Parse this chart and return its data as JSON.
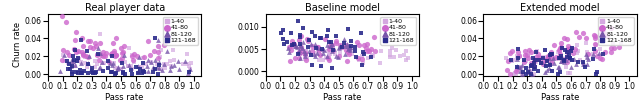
{
  "titles": [
    "Real player data",
    "Baseline model",
    "Extended model"
  ],
  "xlabel": "Pass rate",
  "ylabel": "Churn rate",
  "groups": [
    "1-40",
    "41-80",
    "81-120",
    "121-168"
  ],
  "colors": [
    "#d4a8e0",
    "#cc66cc",
    "#7755aa",
    "#2b2b8c"
  ],
  "markers": [
    "s",
    "o",
    "^",
    "s"
  ],
  "alphas": [
    0.7,
    0.8,
    0.8,
    0.9
  ],
  "marker_sizes": [
    10,
    14,
    12,
    10
  ]
}
